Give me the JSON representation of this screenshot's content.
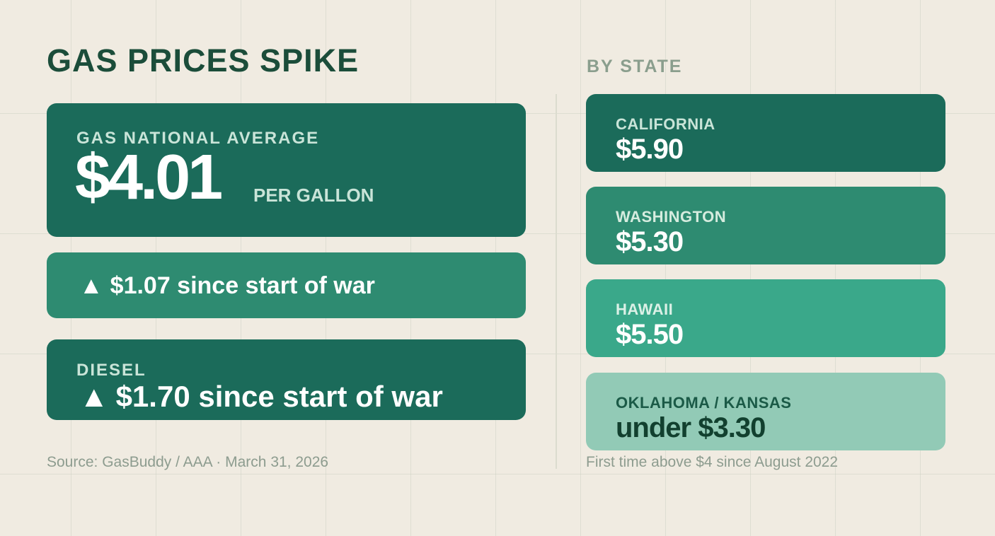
{
  "header": {
    "title": "GAS PRICES SPIKE",
    "by_state_label": "BY STATE"
  },
  "national": {
    "label": "GAS NATIONAL AVERAGE",
    "price": "$4.01",
    "unit": "PER GALLON"
  },
  "change": {
    "arrow": "▲",
    "text": "$1.07 since start of war"
  },
  "diesel": {
    "label": "DIESEL",
    "arrow": "▲",
    "text": "$1.70 since start of war"
  },
  "states": [
    {
      "name": "CALIFORNIA",
      "price": "$5.90",
      "color": "#1b6b5a",
      "label_color": "#c9e4d8",
      "price_color": "#ffffff"
    },
    {
      "name": "WASHINGTON",
      "price": "$5.30",
      "color": "#2e8b71",
      "label_color": "#d6ecdf",
      "price_color": "#ffffff"
    },
    {
      "name": "HAWAII",
      "price": "$5.50",
      "color": "#3aa88a",
      "label_color": "#dbf0e6",
      "price_color": "#ffffff"
    },
    {
      "name": "OKLAHOMA / KANSAS",
      "price": "under $3.30",
      "color": "#92cab6",
      "label_color": "#1b5a47",
      "price_color": "#12402f"
    }
  ],
  "footer": {
    "source": "Source: GasBuddy / AAA · March 31, 2026",
    "note": "First time above $4 since August 2022"
  },
  "colors": {
    "background": "#f0ebe1",
    "title": "#1b4d3a",
    "dark_green": "#1b6b5a",
    "mid_green": "#2e8b71"
  }
}
